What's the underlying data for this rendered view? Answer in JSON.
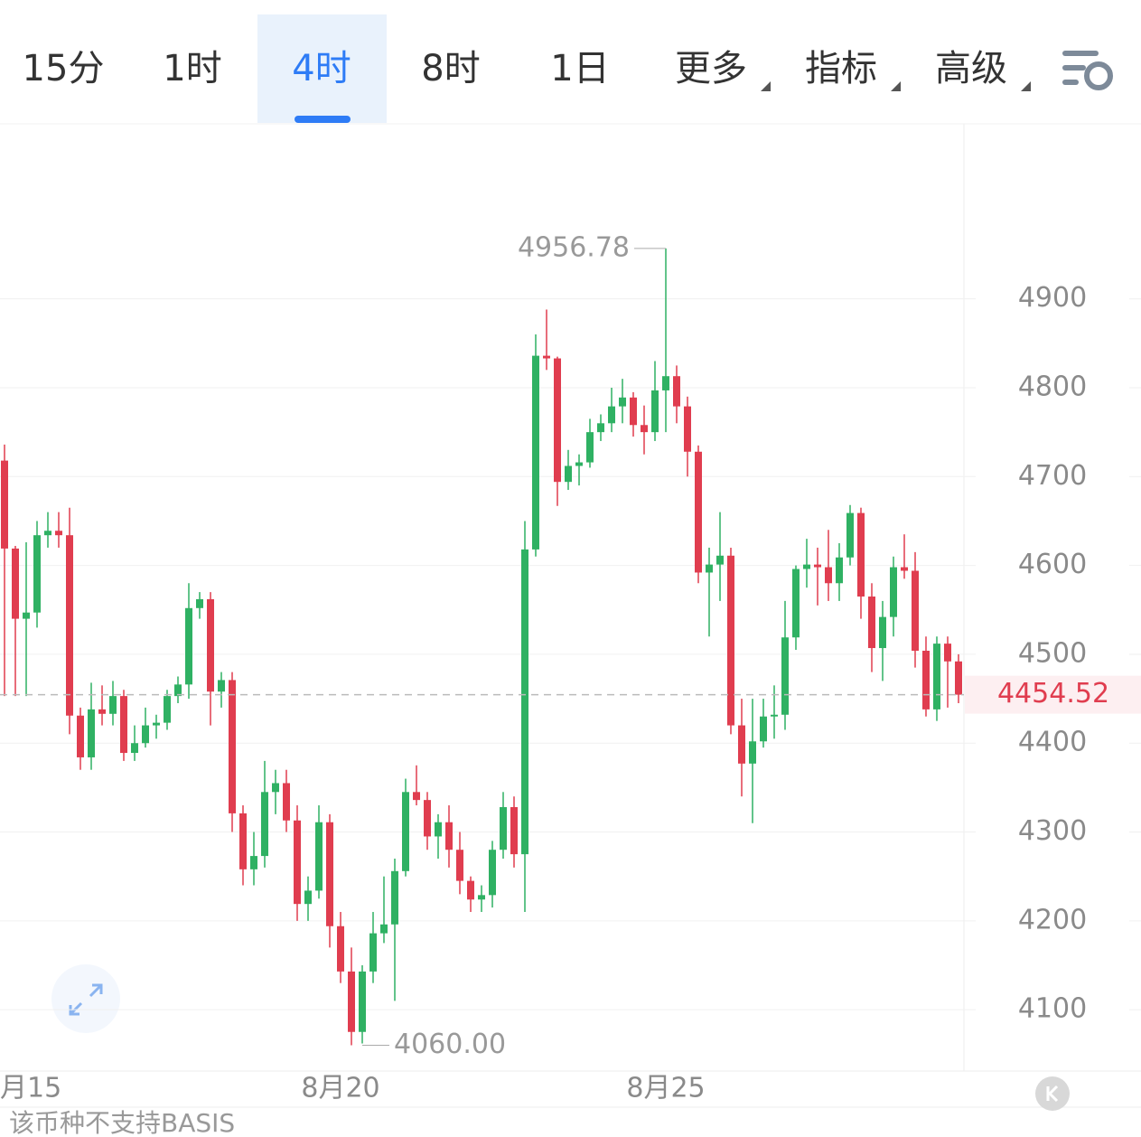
{
  "tabs": [
    {
      "label": "15分"
    },
    {
      "label": "1时"
    },
    {
      "label": "4时",
      "active": true
    },
    {
      "label": "8时"
    },
    {
      "label": "1日"
    },
    {
      "label": "更多",
      "dropdown": true
    },
    {
      "label": "指标",
      "dropdown": true
    },
    {
      "label": "高级",
      "dropdown": true
    }
  ],
  "chart_data": {
    "type": "candlestick",
    "categories": [
      null,
      "月15",
      null,
      null,
      null,
      null,
      null,
      null,
      null,
      null,
      null,
      null,
      null,
      null,
      null,
      null,
      null,
      null,
      null,
      null,
      null,
      null,
      null,
      null,
      null,
      null,
      null,
      null,
      null,
      null,
      null,
      "8月20",
      null,
      null,
      null,
      null,
      null,
      null,
      null,
      null,
      null,
      null,
      null,
      null,
      null,
      null,
      null,
      null,
      null,
      null,
      null,
      null,
      null,
      null,
      null,
      null,
      null,
      null,
      null,
      null,
      null,
      "8月25",
      null,
      null,
      null,
      null,
      null,
      null,
      null,
      null,
      null,
      null,
      null,
      null,
      null,
      null,
      null,
      null,
      null,
      null,
      null,
      null,
      null,
      null,
      null,
      null,
      null,
      null,
      null
    ],
    "open": [
      4718,
      4619,
      4540,
      4547,
      4634,
      4639,
      4634,
      4431,
      4384,
      4438,
      4433,
      4453,
      4389,
      4400,
      4420,
      4423,
      4453,
      4466,
      4552,
      4562,
      4458,
      4471,
      4321,
      4258,
      4273,
      4345,
      4355,
      4313,
      4219,
      4234,
      4311,
      4194,
      4143,
      4075,
      4143,
      4186,
      4196,
      4256,
      4345,
      4336,
      4295,
      4311,
      4280,
      4245,
      4224,
      4229,
      4280,
      4328,
      4275,
      4618,
      4836,
      4833,
      4694,
      4712,
      4716,
      4750,
      4760,
      4779,
      4789,
      4758,
      4750,
      4797,
      4813,
      4779,
      4728,
      4592,
      4601,
      4611,
      4420,
      4377,
      4402,
      4430,
      4432,
      4519,
      4596,
      4601,
      4598,
      4580,
      4609,
      4659,
      4565,
      4507,
      4542,
      4598,
      4594,
      4504,
      4438,
      4512,
      4492
    ],
    "high": [
      4736,
      4622,
      4626,
      4650,
      4660,
      4660,
      4665,
      4440,
      4468,
      4465,
      4470,
      4460,
      4420,
      4440,
      4432,
      4460,
      4475,
      4580,
      4570,
      4570,
      4480,
      4480,
      4330,
      4300,
      4380,
      4370,
      4370,
      4330,
      4250,
      4330,
      4320,
      4210,
      4170,
      4150,
      4210,
      4250,
      4270,
      4360,
      4375,
      4345,
      4320,
      4330,
      4300,
      4250,
      4240,
      4290,
      4345,
      4340,
      4650,
      4860,
      4888,
      4835,
      4730,
      4725,
      4765,
      4770,
      4800,
      4810,
      4795,
      4780,
      4830,
      4956.78,
      4825,
      4790,
      4735,
      4620,
      4660,
      4620,
      4450,
      4450,
      4450,
      4465,
      4560,
      4600,
      4630,
      4620,
      4640,
      4625,
      4668,
      4665,
      4580,
      4560,
      4610,
      4635,
      4615,
      4520,
      4520,
      4520,
      4500
    ],
    "low": [
      4453,
      4453,
      4453,
      4530,
      4620,
      4620,
      4410,
      4370,
      4370,
      4420,
      4420,
      4380,
      4380,
      4395,
      4405,
      4415,
      4445,
      4450,
      4540,
      4420,
      4440,
      4300,
      4240,
      4240,
      4260,
      4320,
      4300,
      4200,
      4200,
      4225,
      4170,
      4130,
      4060,
      4062,
      4130,
      4175,
      4110,
      4250,
      4330,
      4280,
      4270,
      4260,
      4230,
      4210,
      4210,
      4215,
      4270,
      4260,
      4210,
      4610,
      4820,
      4667,
      4685,
      4690,
      4710,
      4740,
      4750,
      4760,
      4745,
      4725,
      4740,
      4750,
      4760,
      4700,
      4580,
      4520,
      4560,
      4410,
      4340,
      4310,
      4395,
      4405,
      4415,
      4505,
      4575,
      4555,
      4560,
      4560,
      4600,
      4540,
      4480,
      4470,
      4520,
      4585,
      4485,
      4430,
      4425,
      4440,
      4445
    ],
    "close": [
      4619,
      4540,
      4547,
      4634,
      4639,
      4634,
      4431,
      4384,
      4438,
      4433,
      4453,
      4389,
      4400,
      4420,
      4423,
      4453,
      4466,
      4552,
      4562,
      4458,
      4471,
      4321,
      4258,
      4273,
      4345,
      4355,
      4313,
      4219,
      4234,
      4311,
      4194,
      4143,
      4075,
      4143,
      4186,
      4196,
      4256,
      4345,
      4336,
      4295,
      4311,
      4280,
      4245,
      4224,
      4229,
      4280,
      4328,
      4275,
      4618,
      4836,
      4833,
      4694,
      4712,
      4716,
      4750,
      4760,
      4779,
      4789,
      4758,
      4750,
      4797,
      4813,
      4779,
      4728,
      4592,
      4601,
      4611,
      4420,
      4377,
      4402,
      4430,
      4432,
      4519,
      4596,
      4601,
      4598,
      4580,
      4609,
      4659,
      4565,
      4507,
      4542,
      4598,
      4594,
      4504,
      4438,
      4512,
      4492,
      4454.52
    ],
    "up_color": "#2fb163",
    "down_color": "#e03d4f",
    "ylim": [
      4031,
      5097
    ],
    "yticks": [
      4100,
      4200,
      4300,
      4400,
      4500,
      4600,
      4700,
      4800,
      4900
    ],
    "grid": true,
    "max_label": 4956.78,
    "min_label": {
      "value": 4060,
      "label": "4060.00"
    },
    "last_price": 4454.52
  },
  "footer": "该币种不支持BASIS"
}
